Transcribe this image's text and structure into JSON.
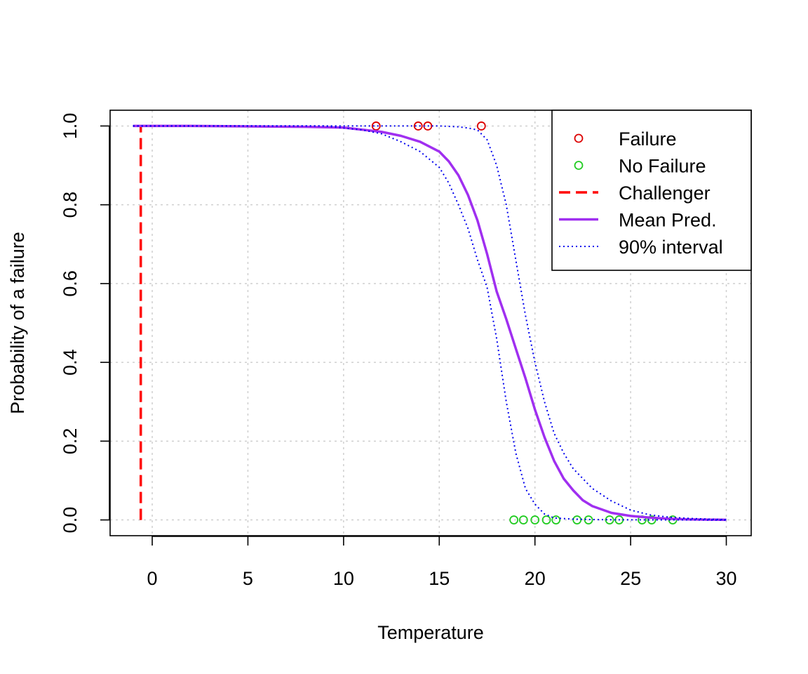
{
  "chart_data": {
    "type": "line",
    "title": "",
    "xlabel": "Temperature",
    "ylabel": "Probability of a failure",
    "xlim": [
      -2.2,
      31.3
    ],
    "ylim": [
      -0.04,
      1.04
    ],
    "xticks": [
      0,
      5,
      10,
      15,
      20,
      25,
      30
    ],
    "yticks": [
      0.0,
      0.2,
      0.4,
      0.6,
      0.8,
      1.0
    ],
    "xtick_labels": [
      "0",
      "5",
      "10",
      "15",
      "20",
      "25",
      "30"
    ],
    "ytick_labels": [
      "0.0",
      "0.2",
      "0.4",
      "0.6",
      "0.8",
      "1.0"
    ],
    "grid": true,
    "legend_position": "top-right",
    "series": [
      {
        "name": "Failure",
        "kind": "points",
        "color": "#dd0000",
        "x": [
          11.7,
          13.9,
          14.4,
          17.2
        ],
        "y": [
          1,
          1,
          1,
          1
        ]
      },
      {
        "name": "No Failure",
        "kind": "points",
        "color": "#22cc22",
        "x": [
          18.9,
          19.4,
          20.0,
          20.6,
          21.1,
          22.2,
          22.8,
          23.9,
          24.4,
          25.6,
          26.1,
          27.2
        ],
        "y": [
          0,
          0,
          0,
          0,
          0,
          0,
          0,
          0,
          0,
          0,
          0,
          0
        ]
      },
      {
        "name": "Challenger",
        "kind": "vline",
        "color": "#ff0000",
        "x": [
          -0.6,
          -0.6
        ],
        "y": [
          0,
          1
        ]
      },
      {
        "name": "Mean Pred.",
        "kind": "line",
        "color": "#a02ff0",
        "x": [
          -1,
          2,
          5,
          8,
          10,
          12,
          13,
          14,
          15,
          15.5,
          16,
          16.5,
          17,
          17.5,
          18,
          18.5,
          19,
          19.5,
          20,
          20.5,
          21,
          21.5,
          22,
          22.5,
          23,
          24,
          25,
          26,
          27,
          28,
          29,
          30
        ],
        "y": [
          1.0,
          1.0,
          0.999,
          0.998,
          0.996,
          0.985,
          0.975,
          0.96,
          0.935,
          0.91,
          0.875,
          0.825,
          0.76,
          0.675,
          0.58,
          0.51,
          0.435,
          0.36,
          0.28,
          0.21,
          0.15,
          0.105,
          0.075,
          0.05,
          0.035,
          0.018,
          0.01,
          0.006,
          0.003,
          0.0015,
          0.0008,
          0.0002
        ]
      },
      {
        "name": "90% interval",
        "kind": "dotted",
        "color": "#0000ee",
        "x": [
          -1,
          5,
          9,
          10,
          11,
          12,
          13,
          14,
          15,
          15.5,
          16,
          16.5,
          17,
          17.5,
          18,
          18.5,
          19,
          19.5,
          20,
          20.5,
          21,
          22,
          23,
          24,
          25,
          27,
          30
        ],
        "y": [
          1.0,
          1.0,
          1.0,
          0.995,
          0.99,
          0.98,
          0.96,
          0.935,
          0.895,
          0.855,
          0.8,
          0.74,
          0.66,
          0.59,
          0.46,
          0.3,
          0.17,
          0.08,
          0.04,
          0.015,
          0.005,
          0.002,
          0.001,
          0.0005,
          0.0002,
          0.0001,
          0.0
        ]
      },
      {
        "name": "90% interval (upper)",
        "kind": "dotted",
        "color": "#0000ee",
        "x": [
          -1,
          10,
          13,
          14,
          15,
          16,
          16.5,
          17,
          17.5,
          18,
          18.5,
          19,
          19.5,
          20,
          20.5,
          21,
          21.5,
          22,
          23,
          24,
          25,
          26,
          27,
          28,
          29,
          30
        ],
        "y": [
          1.0,
          1.0,
          1.0,
          1.0,
          1.0,
          0.998,
          0.995,
          0.99,
          0.965,
          0.9,
          0.8,
          0.66,
          0.52,
          0.4,
          0.3,
          0.22,
          0.17,
          0.13,
          0.08,
          0.048,
          0.025,
          0.013,
          0.007,
          0.004,
          0.002,
          0.0005
        ]
      }
    ],
    "legend": [
      {
        "label": "Failure",
        "symbol": "circle",
        "color": "#dd0000"
      },
      {
        "label": "No Failure",
        "symbol": "circle",
        "color": "#22cc22"
      },
      {
        "label": "Challenger",
        "symbol": "dash",
        "color": "#ff0000"
      },
      {
        "label": "Mean Pred.",
        "symbol": "solid",
        "color": "#a02ff0"
      },
      {
        "label": "90% interval",
        "symbol": "dot",
        "color": "#0000ee"
      }
    ]
  }
}
